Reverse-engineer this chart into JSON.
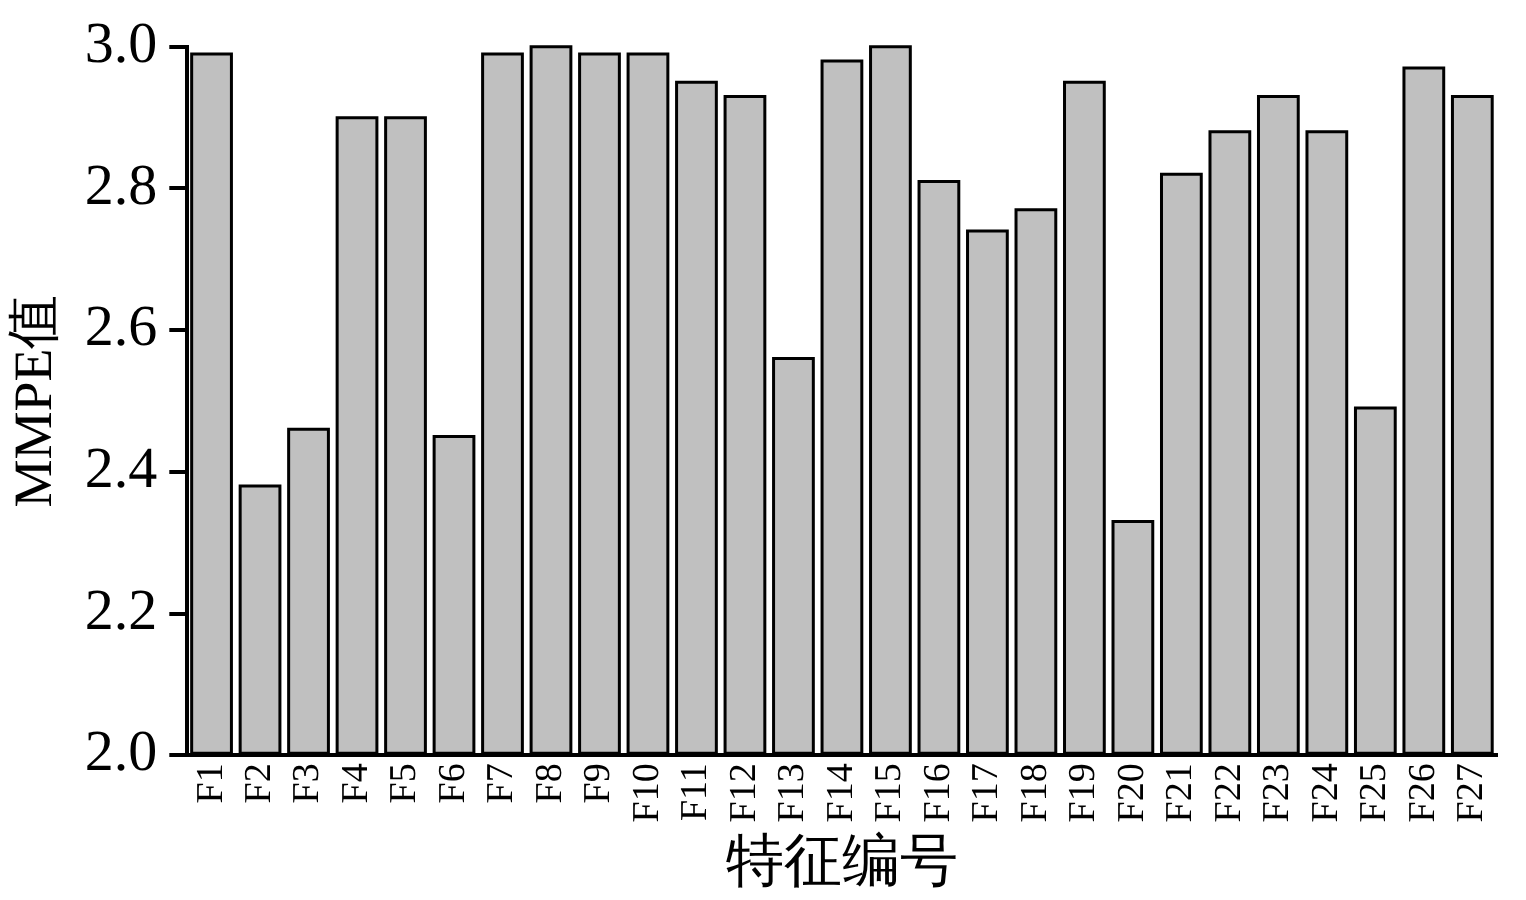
{
  "chart_data": {
    "type": "bar",
    "xlabel": "特征编号",
    "ylabel": "MMPE值",
    "categories": [
      "F1",
      "F2",
      "F3",
      "F4",
      "F5",
      "F6",
      "F7",
      "F8",
      "F9",
      "F10",
      "F11",
      "F12",
      "F13",
      "F14",
      "F15",
      "F16",
      "F17",
      "F18",
      "F19",
      "F20",
      "F21",
      "F22",
      "F23",
      "F24",
      "F25",
      "F26",
      "F27"
    ],
    "values": [
      2.99,
      2.38,
      2.46,
      2.9,
      2.9,
      2.45,
      2.99,
      3.0,
      2.99,
      2.99,
      2.95,
      2.93,
      2.56,
      2.98,
      3.0,
      2.81,
      2.74,
      2.77,
      2.95,
      2.33,
      2.82,
      2.88,
      2.93,
      2.88,
      2.49,
      2.97,
      2.93
    ],
    "color": "#c0c0c0",
    "ylim": [
      2.0,
      3.0
    ],
    "yticks": [
      {
        "value": 2.0,
        "label": "2.0"
      },
      {
        "value": 2.2,
        "label": "2.2"
      },
      {
        "value": 2.4,
        "label": "2.4"
      },
      {
        "value": 2.6,
        "label": "2.6"
      },
      {
        "value": 2.8,
        "label": "2.8"
      },
      {
        "value": 3.0,
        "label": "3.0"
      }
    ],
    "grid": false,
    "legend": false
  }
}
